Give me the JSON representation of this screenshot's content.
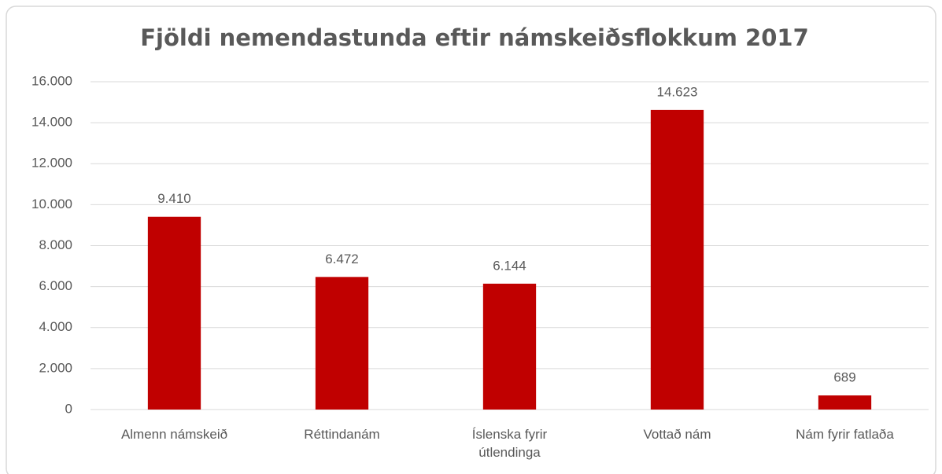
{
  "chart_data": {
    "type": "bar",
    "title": "Fjöldi nemendastunda eftir námskeiðsflokkum 2017",
    "categories": [
      "Almenn námskeið",
      "Réttindanám",
      "Íslenska fyrir útlendinga",
      "Vottað nám",
      "Nám fyrir fatlaða"
    ],
    "values": [
      9410,
      6472,
      6144,
      14623,
      689
    ],
    "value_labels": [
      "9.410",
      "6.472",
      "6.144",
      "14.623",
      "689"
    ],
    "color": "#c00000",
    "ylim": [
      0,
      16000
    ],
    "yticks": [
      0,
      {
        "value": 2000,
        "label": "2.000"
      },
      {
        "value": 4000,
        "label": "4.000"
      },
      {
        "value": 6000,
        "label": "6.000"
      },
      {
        "value": 8000,
        "label": "8.000"
      },
      {
        "value": 10000,
        "label": "10.000"
      },
      {
        "value": 12000,
        "label": "12.000"
      },
      {
        "value": 14000,
        "label": "14.000"
      },
      {
        "value": 16000,
        "label": "16.000"
      }
    ],
    "grid": true
  }
}
